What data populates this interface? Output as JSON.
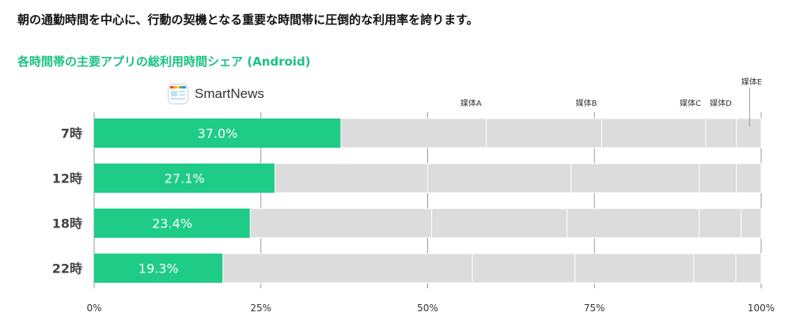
{
  "headline": "朝の通勤時間を中心に、行動の契機となる重要な時間帯に圧倒的な利用率を誇ります。",
  "brand": {
    "name": "SmartNews",
    "icon": "smartnews-app-icon"
  },
  "colors": {
    "highlight": "#1ecc88",
    "highlight_title": "#19c282",
    "other": "#dcdcdc",
    "separator": "#ffffff"
  },
  "chart_data": {
    "type": "bar",
    "orientation": "horizontal",
    "stacked": true,
    "title": "各時間帯の主要アプリの総利用時間シェア (Android)",
    "categories": [
      "7時",
      "12時",
      "18時",
      "22時"
    ],
    "series": [
      {
        "name": "SmartNews",
        "values": [
          37.0,
          27.1,
          23.4,
          19.3
        ],
        "labels": [
          "37.0%",
          "27.1%",
          "23.4%",
          "19.3%"
        ]
      },
      {
        "name": "媒体A",
        "values": [
          21.8,
          22.9,
          27.2,
          37.4
        ]
      },
      {
        "name": "媒体B",
        "values": [
          17.3,
          21.5,
          20.3,
          15.4
        ]
      },
      {
        "name": "媒体C",
        "values": [
          15.6,
          19.2,
          19.8,
          17.8
        ]
      },
      {
        "name": "媒体D",
        "values": [
          4.6,
          5.6,
          6.3,
          6.3
        ]
      },
      {
        "name": "媒体E",
        "values": [
          3.7,
          3.7,
          3.0,
          3.8
        ]
      }
    ],
    "xlim": [
      0,
      100
    ],
    "xticks": [
      "0%",
      "25%",
      "50%",
      "75%",
      "100%"
    ],
    "xtick_values": [
      0,
      25,
      50,
      75,
      100
    ],
    "grid": true,
    "legend": "labels above first bar"
  }
}
